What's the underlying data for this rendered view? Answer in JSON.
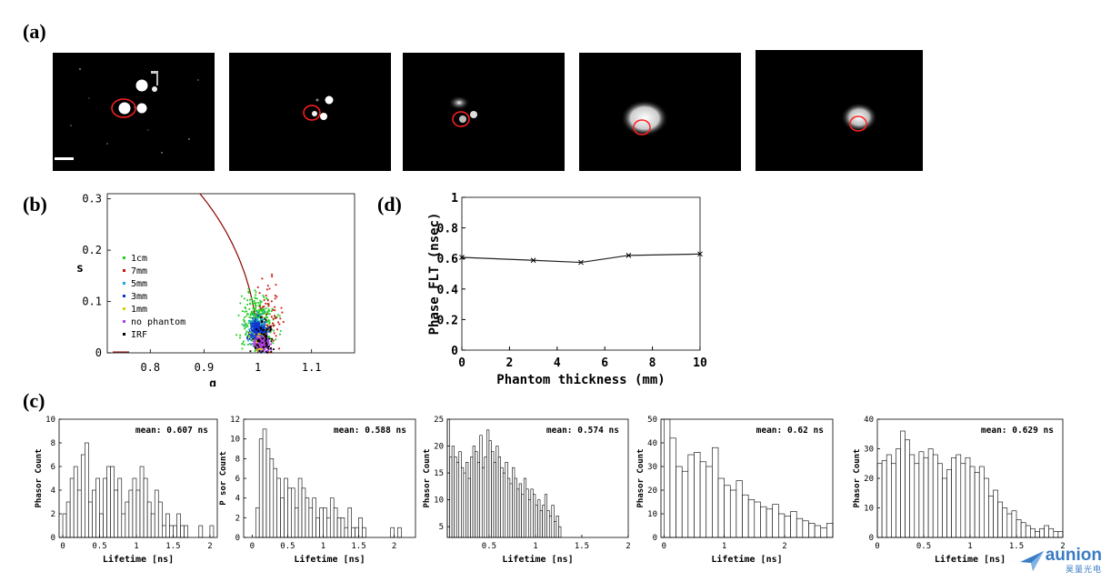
{
  "labels": {
    "a": "(a)",
    "b": "(b)",
    "c": "(c)",
    "d": "(d)"
  },
  "colors": {
    "circle": "#ff2020",
    "curve": "#8b0000",
    "line": "#222222"
  },
  "chart_data": [
    {
      "id": "b",
      "type": "scatter",
      "xlabel": "g",
      "ylabel": "s",
      "xlim": [
        0.72,
        1.18
      ],
      "ylim": [
        0,
        0.31
      ],
      "xticks": [
        0.8,
        0.9,
        1,
        1.1
      ],
      "xtick_labels": [
        "0.8",
        "0.9",
        "1",
        "1.1"
      ],
      "yticks": [
        0,
        0.1,
        0.2,
        0.3
      ],
      "ytick_labels": [
        "0",
        "0.1",
        "0.2",
        "0.3"
      ],
      "legend_position": "left",
      "series": [
        {
          "name": "1cm",
          "color": "#22cc22",
          "center": [
            1.0,
            0.06
          ],
          "spread": [
            0.025,
            0.05
          ],
          "count": 320
        },
        {
          "name": "7mm",
          "color": "#cc1111",
          "center": [
            1.02,
            0.07
          ],
          "spread": [
            0.02,
            0.06
          ],
          "count": 70
        },
        {
          "name": "5mm",
          "color": "#1fa3e0",
          "center": [
            1.0,
            0.045
          ],
          "spread": [
            0.012,
            0.025
          ],
          "count": 260
        },
        {
          "name": "3mm",
          "color": "#1133cc",
          "center": [
            1.0,
            0.04
          ],
          "spread": [
            0.012,
            0.02
          ],
          "count": 240
        },
        {
          "name": "1mm",
          "color": "#ddcc00",
          "center": [
            1.005,
            0.02
          ],
          "spread": [
            0.012,
            0.015
          ],
          "count": 120
        },
        {
          "name": "no phantom",
          "color": "#b040e0",
          "center": [
            1.01,
            0.018
          ],
          "spread": [
            0.012,
            0.012
          ],
          "count": 200
        },
        {
          "name": "IRF",
          "color": "#000000",
          "center": [
            1.01,
            0.03
          ],
          "spread": [
            0.015,
            0.03
          ],
          "count": 70
        }
      ],
      "extra_legend": {
        "name": "",
        "color": "#8b0000"
      }
    },
    {
      "id": "d",
      "type": "line",
      "xlabel": "Phantom thickness (mm)",
      "ylabel": "Phase FLT (nsec)",
      "x": [
        0,
        3,
        5,
        7,
        10
      ],
      "y": [
        0.607,
        0.588,
        0.574,
        0.62,
        0.629
      ],
      "xlim": [
        0,
        10
      ],
      "ylim": [
        0,
        1
      ],
      "xticks": [
        0,
        2,
        4,
        6,
        8,
        10
      ],
      "xtick_labels": [
        "0",
        "2",
        "4",
        "6",
        "8",
        "10"
      ],
      "yticks": [
        0,
        0.2,
        0.4,
        0.6,
        0.8,
        1
      ],
      "ytick_labels": [
        "0",
        "0.2",
        "0.4",
        "0.6",
        "0.8",
        "1"
      ]
    },
    {
      "id": "c1",
      "type": "bar",
      "xlabel": "Lifetime [ns]",
      "ylabel": "Phasor Count",
      "annotation": "mean: 0.607 ns",
      "xlim": [
        -0.05,
        2.1
      ],
      "ylim": [
        0,
        10
      ],
      "xticks": [
        0,
        0.5,
        1,
        1.5,
        2
      ],
      "xtick_labels": [
        "0",
        "0.5",
        "1",
        "1.5",
        "2"
      ],
      "yticks": [
        0,
        2,
        4,
        6,
        8,
        10
      ],
      "ytick_labels": [
        "0",
        "2",
        "4",
        "6",
        "8",
        "10"
      ],
      "bin_start": 0.0,
      "bin_width": 0.05,
      "values": [
        2,
        3,
        5,
        6,
        4,
        7,
        8,
        3,
        4,
        5,
        2,
        5,
        6,
        6,
        4,
        5,
        2,
        3,
        4,
        5,
        4,
        6,
        5,
        3,
        2,
        4,
        3,
        1,
        2,
        1,
        1,
        2,
        1,
        1,
        0,
        0,
        0,
        1,
        0,
        0,
        1
      ]
    },
    {
      "id": "c2",
      "type": "bar",
      "xlabel": "Lifetime [ns]",
      "ylabel": "P sor Count",
      "annotation": "mean: 0.588 ns",
      "xlim": [
        -0.12,
        2.3
      ],
      "ylim": [
        0,
        12
      ],
      "xticks": [
        0,
        0.5,
        1,
        1.5,
        2
      ],
      "xtick_labels": [
        "0",
        "0.5",
        "1",
        "1.5",
        "2"
      ],
      "yticks": [
        0,
        2,
        4,
        6,
        8,
        10,
        12
      ],
      "ytick_labels": [
        "0",
        "2",
        "4",
        "6",
        "8",
        "10",
        "12"
      ],
      "bin_start": 0.05,
      "bin_width": 0.05,
      "values": [
        3,
        10,
        11,
        9,
        8,
        7,
        6,
        4,
        6,
        5,
        5,
        3,
        6,
        5,
        4,
        3,
        4,
        2,
        3,
        3,
        2,
        4,
        3,
        2,
        2,
        1,
        3,
        1,
        1,
        2,
        1,
        0,
        0,
        0,
        0,
        0,
        0,
        0,
        1,
        0,
        1
      ]
    },
    {
      "id": "c3",
      "type": "bar",
      "xlabel": "Lifetime [ns]",
      "ylabel": "Phasor Count",
      "annotation": "mean: 0.574 ns",
      "xlim": [
        0.05,
        2.0
      ],
      "ylim": [
        3,
        25
      ],
      "xticks": [
        0.5,
        1,
        1.5,
        2
      ],
      "xtick_labels": [
        "0.5",
        "1",
        "1.5",
        "2"
      ],
      "yticks": [
        5,
        10,
        15,
        20,
        25
      ],
      "ytick_labels": [
        "5",
        "10",
        "15",
        "20",
        "25"
      ],
      "bin_start": 0.05,
      "bin_width": 0.025,
      "values": [
        25,
        18,
        20,
        18,
        17,
        19,
        16,
        15,
        17,
        14,
        18,
        20,
        19,
        17,
        22,
        16,
        18,
        23,
        21,
        19,
        17,
        20,
        18,
        16,
        15,
        17,
        14,
        13,
        16,
        14,
        12,
        13,
        11,
        14,
        12,
        10,
        12,
        11,
        9,
        10,
        8,
        9,
        11,
        8,
        7,
        9,
        6,
        7,
        5
      ]
    },
    {
      "id": "c4",
      "type": "bar",
      "xlabel": "Lifetime [ns]",
      "ylabel": "Phasor Count",
      "annotation": "mean: 0.62 ns",
      "xlim": [
        -0.05,
        2.8
      ],
      "ylim": [
        0,
        50
      ],
      "xticks": [
        0,
        1,
        2
      ],
      "xtick_labels": [
        "0",
        "1",
        "2"
      ],
      "yticks": [
        0,
        10,
        20,
        30,
        40,
        50
      ],
      "ytick_labels": [
        "0",
        "10",
        "20",
        "30",
        "40",
        "50"
      ],
      "bin_start": 0.0,
      "bin_width": 0.1,
      "values": [
        50,
        42,
        30,
        28,
        35,
        36,
        32,
        30,
        38,
        25,
        22,
        20,
        24,
        18,
        16,
        15,
        13,
        12,
        14,
        10,
        9,
        11,
        8,
        7,
        6,
        5,
        4,
        6,
        3,
        2,
        2,
        1,
        1,
        2,
        1,
        0,
        1,
        1,
        0,
        1
      ]
    },
    {
      "id": "c5",
      "type": "bar",
      "xlabel": "Lifetime [ns]",
      "ylabel": "Phasor Count",
      "annotation": "mean: 0.629 ns",
      "xlim": [
        0,
        2
      ],
      "ylim": [
        0,
        40
      ],
      "xticks": [
        0,
        0.5,
        1,
        1.5,
        2
      ],
      "xtick_labels": [
        "0",
        "0.5",
        "1",
        "1.5",
        "2"
      ],
      "yticks": [
        0,
        10,
        20,
        30,
        40
      ],
      "ytick_labels": [
        "0",
        "10",
        "20",
        "30",
        "40"
      ],
      "bin_start": 0.0,
      "bin_width": 0.05,
      "values": [
        25,
        26,
        28,
        25,
        30,
        36,
        33,
        28,
        25,
        29,
        27,
        30,
        28,
        25,
        20,
        23,
        27,
        28,
        25,
        27,
        24,
        22,
        24,
        20,
        14,
        16,
        12,
        10,
        8,
        9,
        6,
        5,
        4,
        3,
        2,
        3,
        4,
        3,
        2,
        2
      ]
    }
  ]
}
